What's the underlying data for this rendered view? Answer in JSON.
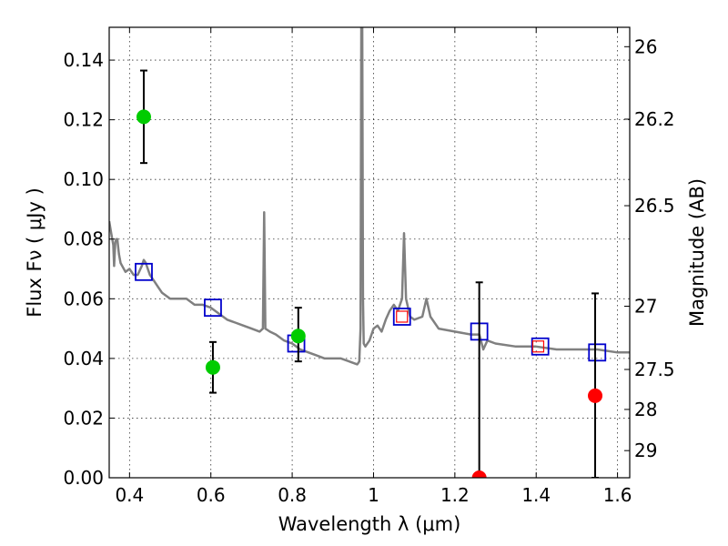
{
  "chart_data": {
    "type": "scatter",
    "title": "",
    "xlabel": "Wavelength  λ (μm)",
    "ylabel": "Flux  Fν  ( μJy )",
    "ylabel_right": "Magnitude (AB)",
    "xlim": [
      0.35,
      1.63
    ],
    "ylim": [
      0,
      0.151
    ],
    "grid": true,
    "x_ticks": [
      0.4,
      0.6,
      0.8,
      1.0,
      1.2,
      1.4,
      1.6
    ],
    "x_tick_labels": [
      "0.4",
      "0.6",
      "0.8",
      "1",
      "1.2",
      "1.4",
      "1.6"
    ],
    "y_ticks": [
      0,
      0.02,
      0.04,
      0.06,
      0.08,
      0.1,
      0.12,
      0.14
    ],
    "y_tick_labels": [
      "0.00",
      "0.02",
      "0.04",
      "0.06",
      "0.08",
      "0.10",
      "0.12",
      "0.14"
    ],
    "right_ticks": [
      {
        "flux": 0.1445,
        "label": "26"
      },
      {
        "flux": 0.1202,
        "label": "26.2"
      },
      {
        "flux": 0.0912,
        "label": "26.5"
      },
      {
        "flux": 0.0575,
        "label": "27"
      },
      {
        "flux": 0.0363,
        "label": "27.5"
      },
      {
        "flux": 0.0229,
        "label": "28"
      },
      {
        "flux": 0.0091,
        "label": "29"
      }
    ],
    "colors": {
      "model": "#808080",
      "model_points": "#0000cc",
      "detections": "#00cc00",
      "low_significance": "#ff0000",
      "errorbar": "#000000"
    },
    "series": [
      {
        "kind": "model_spectrum",
        "x": [
          0.35,
          0.355,
          0.36,
          0.362,
          0.365,
          0.368,
          0.37,
          0.374,
          0.378,
          0.382,
          0.39,
          0.4,
          0.41,
          0.42,
          0.43,
          0.435,
          0.44,
          0.45,
          0.46,
          0.47,
          0.48,
          0.5,
          0.52,
          0.54,
          0.56,
          0.58,
          0.6,
          0.62,
          0.64,
          0.66,
          0.68,
          0.7,
          0.72,
          0.728,
          0.731,
          0.734,
          0.745,
          0.76,
          0.78,
          0.8,
          0.82,
          0.84,
          0.86,
          0.88,
          0.9,
          0.92,
          0.94,
          0.96,
          0.965,
          0.968,
          0.97,
          0.972,
          0.974,
          0.976,
          0.98,
          0.99,
          1.0,
          1.01,
          1.02,
          1.03,
          1.04,
          1.05,
          1.06,
          1.07,
          1.075,
          1.08,
          1.09,
          1.1,
          1.12,
          1.13,
          1.14,
          1.16,
          1.2,
          1.24,
          1.26,
          1.27,
          1.28,
          1.3,
          1.35,
          1.4,
          1.45,
          1.5,
          1.55,
          1.6,
          1.63
        ],
        "y": [
          0.086,
          0.082,
          0.078,
          0.071,
          0.079,
          0.08,
          0.08,
          0.075,
          0.072,
          0.071,
          0.069,
          0.07,
          0.068,
          0.068,
          0.071,
          0.073,
          0.072,
          0.068,
          0.066,
          0.064,
          0.062,
          0.06,
          0.06,
          0.06,
          0.058,
          0.058,
          0.057,
          0.055,
          0.053,
          0.052,
          0.051,
          0.05,
          0.049,
          0.05,
          0.089,
          0.05,
          0.049,
          0.048,
          0.046,
          0.045,
          0.043,
          0.042,
          0.041,
          0.04,
          0.04,
          0.04,
          0.039,
          0.038,
          0.039,
          0.05,
          0.16,
          0.16,
          0.06,
          0.045,
          0.044,
          0.046,
          0.05,
          0.051,
          0.049,
          0.053,
          0.056,
          0.058,
          0.056,
          0.06,
          0.082,
          0.06,
          0.054,
          0.053,
          0.054,
          0.06,
          0.054,
          0.05,
          0.049,
          0.048,
          0.048,
          0.043,
          0.046,
          0.045,
          0.044,
          0.044,
          0.043,
          0.043,
          0.043,
          0.042,
          0.042
        ]
      },
      {
        "kind": "model_photometry",
        "marker": "open-square",
        "x": [
          0.435,
          0.605,
          0.81,
          1.07,
          1.26,
          1.41,
          1.55
        ],
        "y": [
          0.069,
          0.057,
          0.045,
          0.054,
          0.049,
          0.044,
          0.042
        ]
      },
      {
        "kind": "observed",
        "marker": "filled-circle",
        "points": [
          {
            "x": 0.435,
            "y": 0.121,
            "yerr_low": 0.0155,
            "yerr_high": 0.0155,
            "color": "detections"
          },
          {
            "x": 0.605,
            "y": 0.037,
            "yerr_low": 0.0085,
            "yerr_high": 0.0085,
            "color": "detections"
          },
          {
            "x": 0.815,
            "y": 0.0475,
            "yerr_low": 0.0085,
            "yerr_high": 0.0095,
            "color": "detections"
          },
          {
            "x": 1.07,
            "y": 0.054,
            "color": "low_significance",
            "marker": "open-square-small"
          },
          {
            "x": 1.26,
            "y": 0.0,
            "yerr_low": 0.0,
            "yerr_high": 0.0655,
            "color": "low_significance"
          },
          {
            "x": 1.405,
            "y": 0.044,
            "color": "low_significance",
            "marker": "open-square-small"
          },
          {
            "x": 1.545,
            "y": 0.0275,
            "yerr_low": 0.0275,
            "yerr_high": 0.0343,
            "color": "low_significance"
          }
        ]
      }
    ]
  }
}
